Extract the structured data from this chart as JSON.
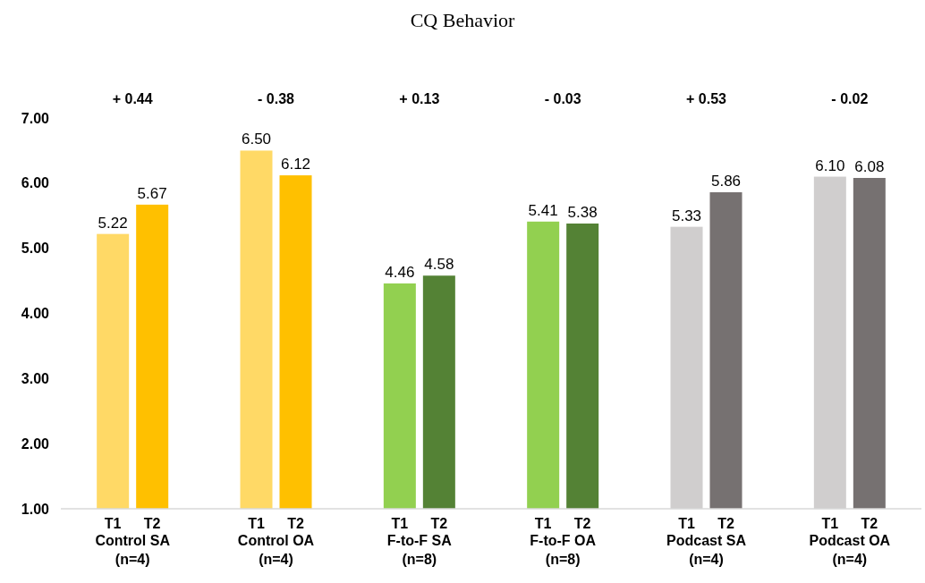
{
  "chart_data": {
    "type": "bar",
    "title": "CQ Behavior",
    "categories": [
      "Control SA\n(n=4)",
      "Control OA\n(n=4)",
      "F-to-F SA\n(n=8)",
      "F-to-F OA\n(n=8)",
      "Podcast SA\n(n=4)",
      "Podcast OA\n(n=4)"
    ],
    "series": [
      {
        "name": "T1",
        "colors": [
          "#ffd966",
          "#ffd966",
          "#92d050",
          "#92d050",
          "#d0cece",
          "#d0cece"
        ],
        "values": [
          5.22,
          6.5,
          4.46,
          5.41,
          5.33,
          6.1
        ],
        "value_labels": [
          "5.22",
          "6.50",
          "4.46",
          "5.41",
          "5.33",
          "6.10"
        ]
      },
      {
        "name": "T2",
        "colors": [
          "#ffc000",
          "#ffc000",
          "#548235",
          "#548235",
          "#767171",
          "#767171"
        ],
        "values": [
          5.67,
          6.12,
          4.58,
          5.38,
          5.86,
          6.08
        ],
        "value_labels": [
          "5.67",
          "6.12",
          "4.58",
          "5.38",
          "5.86",
          "6.08"
        ]
      }
    ],
    "ylim": [
      1,
      7
    ],
    "yticks": [
      {
        "value": 1,
        "label": "1.00"
      },
      {
        "value": 2,
        "label": "2.00"
      },
      {
        "value": 3,
        "label": "3.00"
      },
      {
        "value": 4,
        "label": "4.00"
      },
      {
        "value": 5,
        "label": "5.00"
      },
      {
        "value": 6,
        "label": "6.00"
      },
      {
        "value": 7,
        "label": "7.00"
      }
    ],
    "annotations": [
      "+ 0.44",
      "- 0.38",
      "+ 0.13",
      "- 0.03",
      "+ 0.53",
      "- 0.02"
    ]
  }
}
